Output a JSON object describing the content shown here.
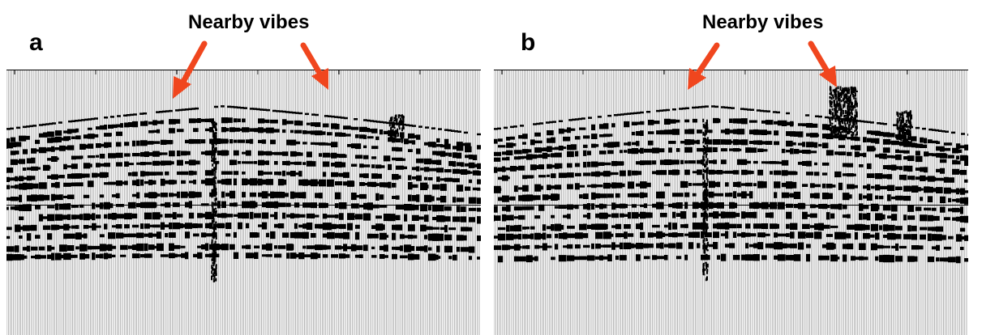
{
  "figure": {
    "panels": [
      {
        "letter": "a",
        "annotation": "Nearby vibes"
      },
      {
        "letter": "b",
        "annotation": "Nearby vibes"
      }
    ],
    "arrow_color": "#f0461e",
    "trace_color": "#000000",
    "background_color": "#ffffff"
  }
}
